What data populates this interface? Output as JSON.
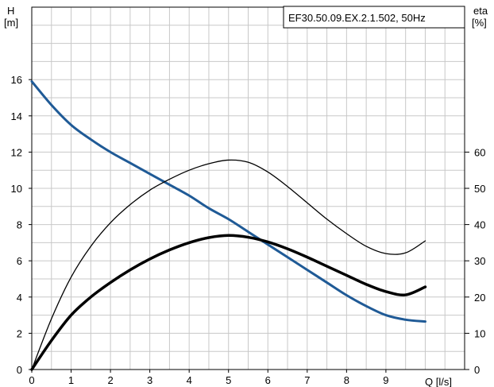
{
  "chart_data": {
    "type": "line",
    "title": "EF30.50.09.EX.2.1.502, 50Hz",
    "x_axis": {
      "label": "Q [l/s]",
      "range": [
        0,
        11
      ],
      "ticks": [
        "0",
        "1",
        "2",
        "3",
        "4",
        "5",
        "6",
        "7",
        "8",
        "9"
      ],
      "grid": true
    },
    "y_axis_left": {
      "label_line1": "H",
      "label_line2": "[m]",
      "range": [
        0,
        20
      ],
      "ticks": [
        "0",
        "2",
        "4",
        "6",
        "8",
        "10",
        "12",
        "14",
        "16"
      ],
      "grid": true
    },
    "y_axis_right": {
      "label_line1": "eta",
      "label_line2": "[%]",
      "range": [
        0,
        100
      ],
      "ticks": [
        "0",
        "10",
        "20",
        "30",
        "40",
        "50",
        "60"
      ]
    },
    "series": [
      {
        "axis": "left",
        "color": "#1f5a96",
        "x": [
          0,
          0.5,
          1,
          1.5,
          2,
          2.5,
          3,
          3.5,
          4,
          4.5,
          5,
          5.5,
          6,
          6.5,
          7,
          7.5,
          8,
          8.5,
          9,
          9.5,
          10
        ],
        "y": [
          15.9,
          14.6,
          13.5,
          12.7,
          12.0,
          11.4,
          10.8,
          10.2,
          9.6,
          8.9,
          8.3,
          7.6,
          6.9,
          6.2,
          5.5,
          4.8,
          4.1,
          3.5,
          3.0,
          2.75,
          2.65
        ]
      },
      {
        "axis": "right",
        "color": "#000000",
        "width": 1.3,
        "x": [
          0,
          0.5,
          1,
          1.5,
          2,
          2.5,
          3,
          3.5,
          4,
          4.5,
          5,
          5.5,
          6,
          6.5,
          7,
          7.5,
          8,
          8.5,
          9,
          9.5,
          10
        ],
        "y": [
          0,
          14,
          25.5,
          34,
          40.5,
          45.5,
          49.5,
          52.5,
          55,
          56.8,
          57.8,
          57.2,
          54.5,
          50.5,
          46,
          41.5,
          37.5,
          34,
          32,
          32.2,
          35.5
        ]
      },
      {
        "axis": "right",
        "color": "#000000",
        "width": 3.5,
        "x": [
          0,
          0.5,
          1,
          1.5,
          2,
          2.5,
          3,
          3.5,
          4,
          4.5,
          5,
          5.5,
          6,
          6.5,
          7,
          7.5,
          8,
          8.5,
          9,
          9.5,
          10
        ],
        "y": [
          0,
          8,
          15,
          20,
          24,
          27.5,
          30.5,
          33,
          35,
          36.4,
          37,
          36.5,
          35.2,
          33.3,
          31,
          28.5,
          26,
          23.5,
          21.5,
          20.6,
          22.8
        ]
      }
    ],
    "legend_position": "top-right"
  },
  "colors": {
    "head_curve": "#1f5a96",
    "grid": "#c8c8c8",
    "axis": "#000000"
  }
}
